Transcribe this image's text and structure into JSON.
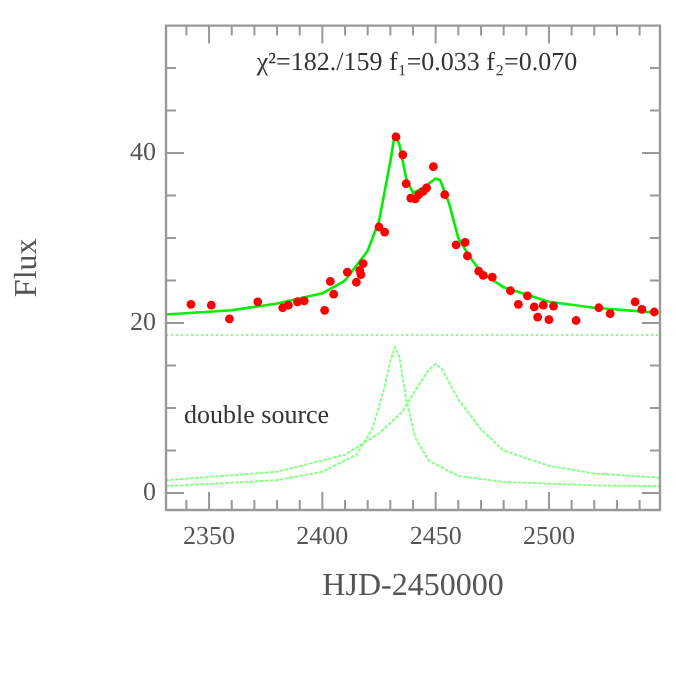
{
  "chart_data": {
    "type": "scatter",
    "xlabel": "HJD-2450000",
    "ylabel": "Flux",
    "annotations": [
      "χ²=182./159 f₁=0.033 f₂=0.070",
      "double source"
    ],
    "xlim": [
      2331,
      2549
    ],
    "ylim": [
      -2,
      55
    ],
    "xticks": [
      {
        "value": 2340,
        "label": null
      },
      2350,
      {
        "value": 2360,
        "label": null
      },
      {
        "value": 2370,
        "label": null
      },
      {
        "value": 2380,
        "label": null
      },
      {
        "value": 2390,
        "label": null
      },
      2400,
      {
        "value": 2410,
        "label": null
      },
      {
        "value": 2420,
        "label": null
      },
      {
        "value": 2430,
        "label": null
      },
      {
        "value": 2440,
        "label": null
      },
      2450,
      {
        "value": 2460,
        "label": null
      },
      {
        "value": 2470,
        "label": null
      },
      {
        "value": 2480,
        "label": null
      },
      {
        "value": 2490,
        "label": null
      },
      2500,
      {
        "value": 2510,
        "label": null
      },
      {
        "value": 2520,
        "label": null
      },
      {
        "value": 2530,
        "label": null
      },
      {
        "value": 2540,
        "label": null
      }
    ],
    "yticks": [
      0,
      {
        "value": 5,
        "label": null
      },
      {
        "value": 10,
        "label": null
      },
      {
        "value": 15,
        "label": null
      },
      20,
      {
        "value": 25,
        "label": null
      },
      {
        "value": 30,
        "label": null
      },
      {
        "value": 35,
        "label": null
      },
      40,
      {
        "value": 45,
        "label": null
      },
      {
        "value": 50,
        "label": null
      }
    ],
    "grid": false,
    "legend": false,
    "ref_lines": [
      {
        "axis": "y",
        "value": 18.6,
        "color": "#88ff88",
        "line_style": "dotted"
      }
    ],
    "series": [
      {
        "type": "line",
        "color": "#00ee00",
        "line_style": "solid",
        "marker": "none",
        "x": [
          2331,
          2360,
          2380,
          2400,
          2410,
          2420,
          2425,
          2430,
          2432,
          2434,
          2437,
          2440,
          2445,
          2450,
          2452,
          2456,
          2460,
          2465,
          2470,
          2480,
          2500,
          2520,
          2549
        ],
        "values": [
          21,
          21.5,
          22.3,
          23.5,
          25,
          28.5,
          32,
          39,
          42.3,
          41,
          37,
          35.3,
          36,
          37,
          36.8,
          34,
          30,
          27.8,
          26,
          24.2,
          22.5,
          21.8,
          21.2
        ]
      },
      {
        "type": "line",
        "color": "#88ff88",
        "line_style": "dotted",
        "marker": "none",
        "x": [
          2331,
          2380,
          2400,
          2415,
          2422,
          2427,
          2430,
          2432,
          2434,
          2437,
          2441,
          2447,
          2460,
          2480,
          2520,
          2549
        ],
        "values": [
          0.8,
          1.5,
          2.5,
          4.5,
          7.5,
          12,
          15.5,
          17.2,
          16,
          11,
          6.5,
          3.8,
          2,
          1.3,
          0.9,
          0.8
        ]
      },
      {
        "type": "line",
        "color": "#88ff88",
        "line_style": "dotted",
        "marker": "none",
        "x": [
          2331,
          2380,
          2410,
          2425,
          2435,
          2442,
          2447,
          2450,
          2453,
          2460,
          2470,
          2480,
          2500,
          2520,
          2549
        ],
        "values": [
          1.5,
          2.5,
          4.5,
          7,
          9.5,
          12.5,
          14.5,
          15.2,
          14.5,
          11,
          7.5,
          5,
          3.2,
          2.3,
          1.8
        ]
      },
      {
        "color": "#ff0000",
        "marker": "circle",
        "x": [
          2342,
          2351,
          2359,
          2371.5,
          2382.5,
          2385,
          2389,
          2392,
          2401,
          2403.5,
          2405,
          2411,
          2415,
          2416.5,
          2417,
          2418,
          2425,
          2427.5,
          2432.5,
          2435.5,
          2437,
          2439,
          2441,
          2442.5,
          2444.5,
          2446,
          2449,
          2454,
          2459,
          2463,
          2464,
          2469,
          2471,
          2475,
          2483,
          2486.5,
          2490.5,
          2493.5,
          2495,
          2497.5,
          2500,
          2502,
          2512,
          2522,
          2527,
          2538,
          2541,
          2546.5
        ],
        "values": [
          22.2,
          22.1,
          20.5,
          22.5,
          21.8,
          22.1,
          22.5,
          22.6,
          21.5,
          24.9,
          23.4,
          26,
          24.8,
          26.2,
          25.7,
          27,
          31.3,
          30.7,
          41.9,
          39.8,
          36.4,
          34.7,
          34.6,
          35.1,
          35.5,
          35.9,
          38.4,
          35.1,
          29.2,
          29.5,
          27.9,
          26.1,
          25.6,
          25.4,
          23.8,
          22.2,
          23.2,
          21.9,
          20.7,
          22.1,
          20.4,
          22,
          20.3,
          21.8,
          21.1,
          22.5,
          21.6,
          21.3
        ]
      }
    ]
  }
}
